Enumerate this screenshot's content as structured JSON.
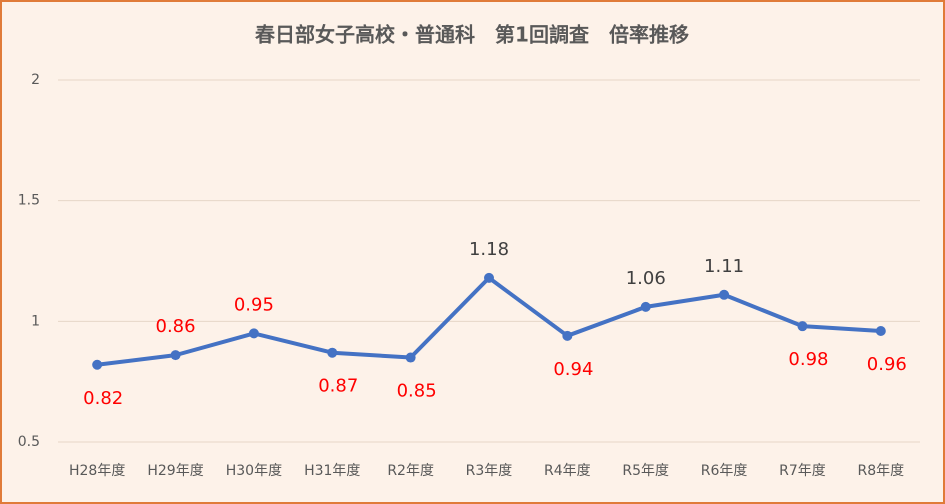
{
  "chart_data": {
    "type": "line",
    "title": "春日部女子高校・普通科　第1回調査　倍率推移",
    "categories": [
      "H28年度",
      "H29年度",
      "H30年度",
      "H31年度",
      "R2年度",
      "R3年度",
      "R4年度",
      "R5年度",
      "R6年度",
      "R7年度",
      "R8年度"
    ],
    "series": [
      {
        "color": "#4472c4",
        "values": [
          0.82,
          0.86,
          0.95,
          0.87,
          0.85,
          1.18,
          0.94,
          1.06,
          1.11,
          0.98,
          0.96
        ]
      }
    ],
    "value_label_colors": [
      "#ff0000",
      "#ff0000",
      "#ff0000",
      "#ff0000",
      "#ff0000",
      "#404040",
      "#ff0000",
      "#404040",
      "#404040",
      "#ff0000",
      "#ff0000"
    ],
    "ylim": [
      0.5,
      2
    ],
    "yticks": [
      0.5,
      1,
      1.5,
      2
    ],
    "grid": true
  }
}
